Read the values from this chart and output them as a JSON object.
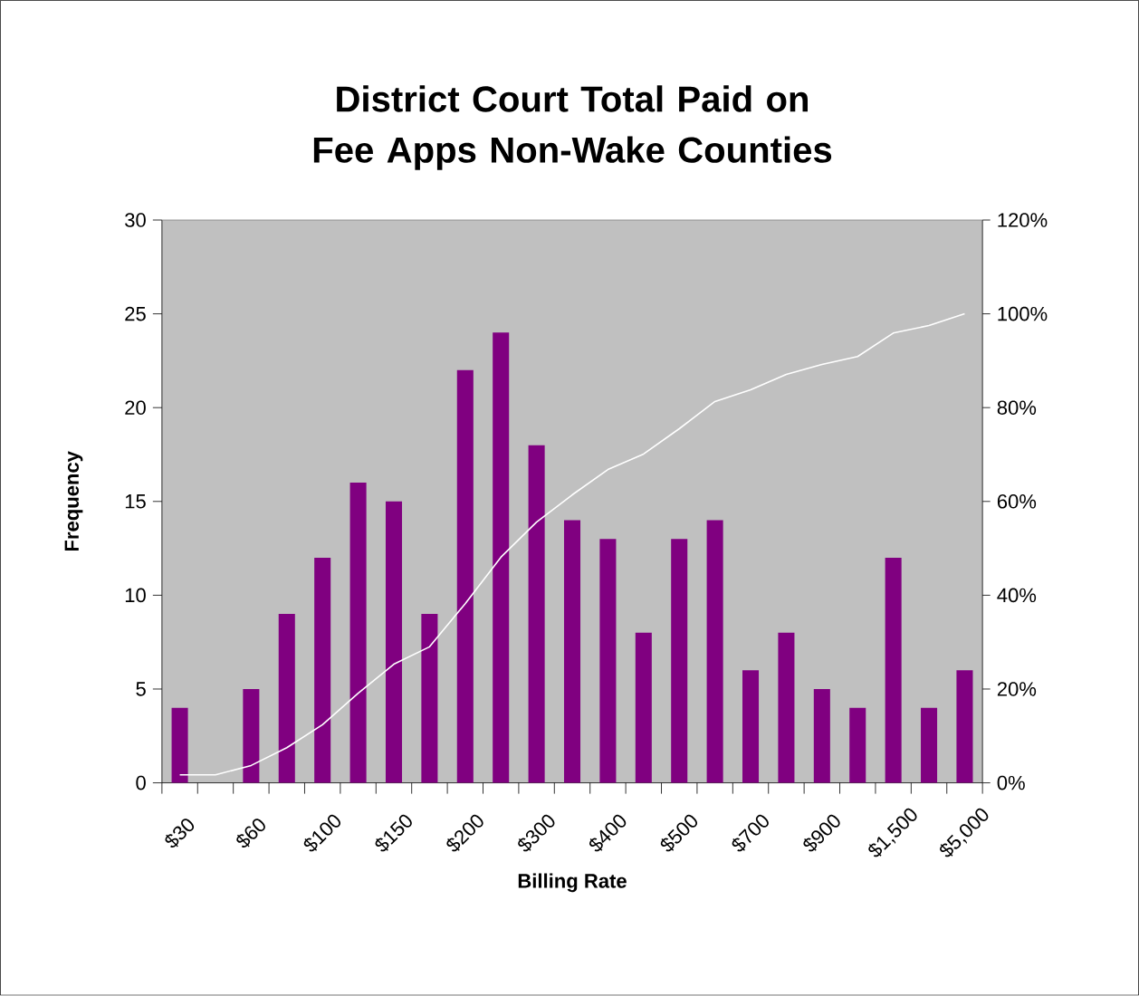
{
  "chart_data": {
    "type": "bar",
    "title": "District Court Total Paid on Fee Apps Non-Wake Counties",
    "xlabel": "Billing Rate",
    "ylabel": "Frequency",
    "categories": [
      "$30",
      null,
      "$60",
      null,
      "$100",
      null,
      "$150",
      null,
      "$200",
      null,
      "$300",
      null,
      "$400",
      null,
      "$500",
      null,
      "$700",
      null,
      "$900",
      null,
      "$1,500",
      null,
      "$5,000"
    ],
    "series": [
      {
        "color": "#800080",
        "values": [
          4,
          0,
          5,
          9,
          12,
          16,
          15,
          9,
          22,
          24,
          18,
          14,
          13,
          8,
          13,
          14,
          6,
          8,
          5,
          4,
          12,
          4,
          6
        ]
      },
      {
        "type": "line",
        "axis": "y2",
        "color": "#ffffff",
        "values": [
          1.7,
          1.7,
          3.7,
          7.5,
          12.4,
          19.1,
          25.3,
          29.0,
          38.2,
          48.1,
          55.6,
          61.4,
          66.8,
          70.1,
          75.5,
          81.3,
          83.8,
          87.1,
          89.2,
          90.9,
          95.9,
          97.5,
          100
        ]
      }
    ],
    "ylim": [
      0,
      30
    ],
    "yticks": [
      0,
      5,
      10,
      15,
      20,
      25,
      30
    ],
    "y2lim": [
      0,
      120
    ],
    "y2ticks": [
      {
        "value": 0,
        "label": "0%"
      },
      {
        "value": 20,
        "label": "20%"
      },
      {
        "value": 40,
        "label": "40%"
      },
      {
        "value": 60,
        "label": "60%"
      },
      {
        "value": 80,
        "label": "80%"
      },
      {
        "value": 100,
        "label": "100%"
      },
      {
        "value": 120,
        "label": "120%"
      }
    ],
    "grid": false
  }
}
